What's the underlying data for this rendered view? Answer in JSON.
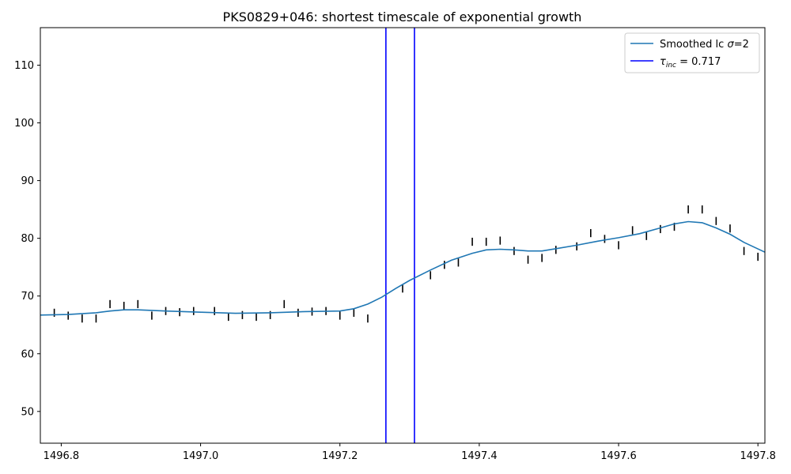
{
  "chart_data": {
    "type": "line",
    "title": "PKS0829+046: shortest timescale of exponential growth",
    "xlabel": "",
    "ylabel": "",
    "xlim": [
      1496.77,
      1497.81
    ],
    "ylim": [
      44.5,
      116.5
    ],
    "x_ticks": [
      1496.8,
      1497.0,
      1497.2,
      1497.4,
      1497.6,
      1497.8
    ],
    "x_tick_labels": [
      "1496.8",
      "1497.0",
      "1497.2",
      "1497.4",
      "1497.6",
      "1497.8"
    ],
    "y_ticks": [
      50,
      60,
      70,
      80,
      90,
      100,
      110
    ],
    "y_tick_labels": [
      "50",
      "60",
      "70",
      "80",
      "90",
      "100",
      "110"
    ],
    "grid": false,
    "legend_position": "top-right",
    "colors": {
      "smoothed": "#1f77b4",
      "tau": "#0000ff",
      "errorbars": "#000000"
    },
    "observations": {
      "x": [
        1496.79,
        1496.81,
        1496.83,
        1496.85,
        1496.87,
        1496.89,
        1496.91,
        1496.93,
        1496.95,
        1496.97,
        1496.99,
        1497.02,
        1497.04,
        1497.06,
        1497.08,
        1497.1,
        1497.12,
        1497.14,
        1497.16,
        1497.18,
        1497.2,
        1497.22,
        1497.24,
        1497.29,
        1497.33,
        1497.35,
        1497.37,
        1497.39,
        1497.41,
        1497.43,
        1497.45,
        1497.47,
        1497.49,
        1497.51,
        1497.54,
        1497.56,
        1497.58,
        1497.6,
        1497.62,
        1497.64,
        1497.66,
        1497.68,
        1497.7,
        1497.72,
        1497.74,
        1497.76,
        1497.78,
        1497.8
      ],
      "y": [
        67.1,
        66.6,
        66.1,
        66.1,
        68.6,
        68.3,
        68.6,
        66.6,
        67.4,
        67.2,
        67.4,
        67.4,
        66.4,
        66.7,
        66.4,
        66.7,
        68.6,
        67.1,
        67.3,
        67.4,
        66.6,
        67.1,
        66.1,
        71.3,
        73.6,
        75.4,
        75.8,
        79.4,
        79.4,
        79.6,
        77.8,
        76.3,
        76.6,
        78.0,
        78.6,
        80.9,
        79.9,
        78.8,
        81.4,
        80.4,
        81.6,
        82.0,
        85.0,
        85.0,
        83.0,
        81.7,
        77.8,
        76.8
      ],
      "err": [
        0.7,
        0.7,
        0.7,
        0.7,
        0.7,
        0.7,
        0.7,
        0.7,
        0.7,
        0.7,
        0.7,
        0.7,
        0.7,
        0.7,
        0.7,
        0.7,
        0.7,
        0.7,
        0.7,
        0.7,
        0.7,
        0.7,
        0.7,
        0.7,
        0.7,
        0.7,
        0.7,
        0.7,
        0.7,
        0.7,
        0.7,
        0.7,
        0.7,
        0.7,
        0.7,
        0.7,
        0.7,
        0.7,
        0.7,
        0.7,
        0.7,
        0.7,
        0.7,
        0.7,
        0.7,
        0.7,
        0.7,
        0.7
      ]
    },
    "series": [
      {
        "name": "Smoothed lc σ=2",
        "x": [
          1496.77,
          1496.81,
          1496.85,
          1496.87,
          1496.89,
          1496.91,
          1496.95,
          1497.0,
          1497.05,
          1497.1,
          1497.15,
          1497.2,
          1497.22,
          1497.24,
          1497.26,
          1497.28,
          1497.3,
          1497.33,
          1497.36,
          1497.39,
          1497.41,
          1497.43,
          1497.45,
          1497.47,
          1497.49,
          1497.51,
          1497.54,
          1497.57,
          1497.6,
          1497.63,
          1497.66,
          1497.68,
          1497.7,
          1497.72,
          1497.74,
          1497.76,
          1497.78,
          1497.81
        ],
        "y": [
          66.7,
          66.8,
          67.1,
          67.4,
          67.6,
          67.6,
          67.4,
          67.2,
          67.0,
          67.1,
          67.3,
          67.4,
          67.8,
          68.6,
          69.8,
          71.3,
          72.7,
          74.5,
          76.2,
          77.4,
          78.0,
          78.1,
          78.0,
          77.8,
          77.8,
          78.2,
          78.8,
          79.5,
          80.1,
          80.8,
          81.8,
          82.5,
          82.9,
          82.7,
          81.8,
          80.7,
          79.3,
          77.6
        ]
      }
    ],
    "vlines": {
      "name": "τinc = 0.717",
      "x": [
        1497.266,
        1497.307
      ]
    },
    "legend": {
      "smoothed_prefix": "Smoothed lc ",
      "smoothed_sigma": "σ",
      "smoothed_suffix": "=2",
      "tau_symbol": "τ",
      "tau_subscript": "inc",
      "tau_suffix": " = 0.717"
    }
  }
}
